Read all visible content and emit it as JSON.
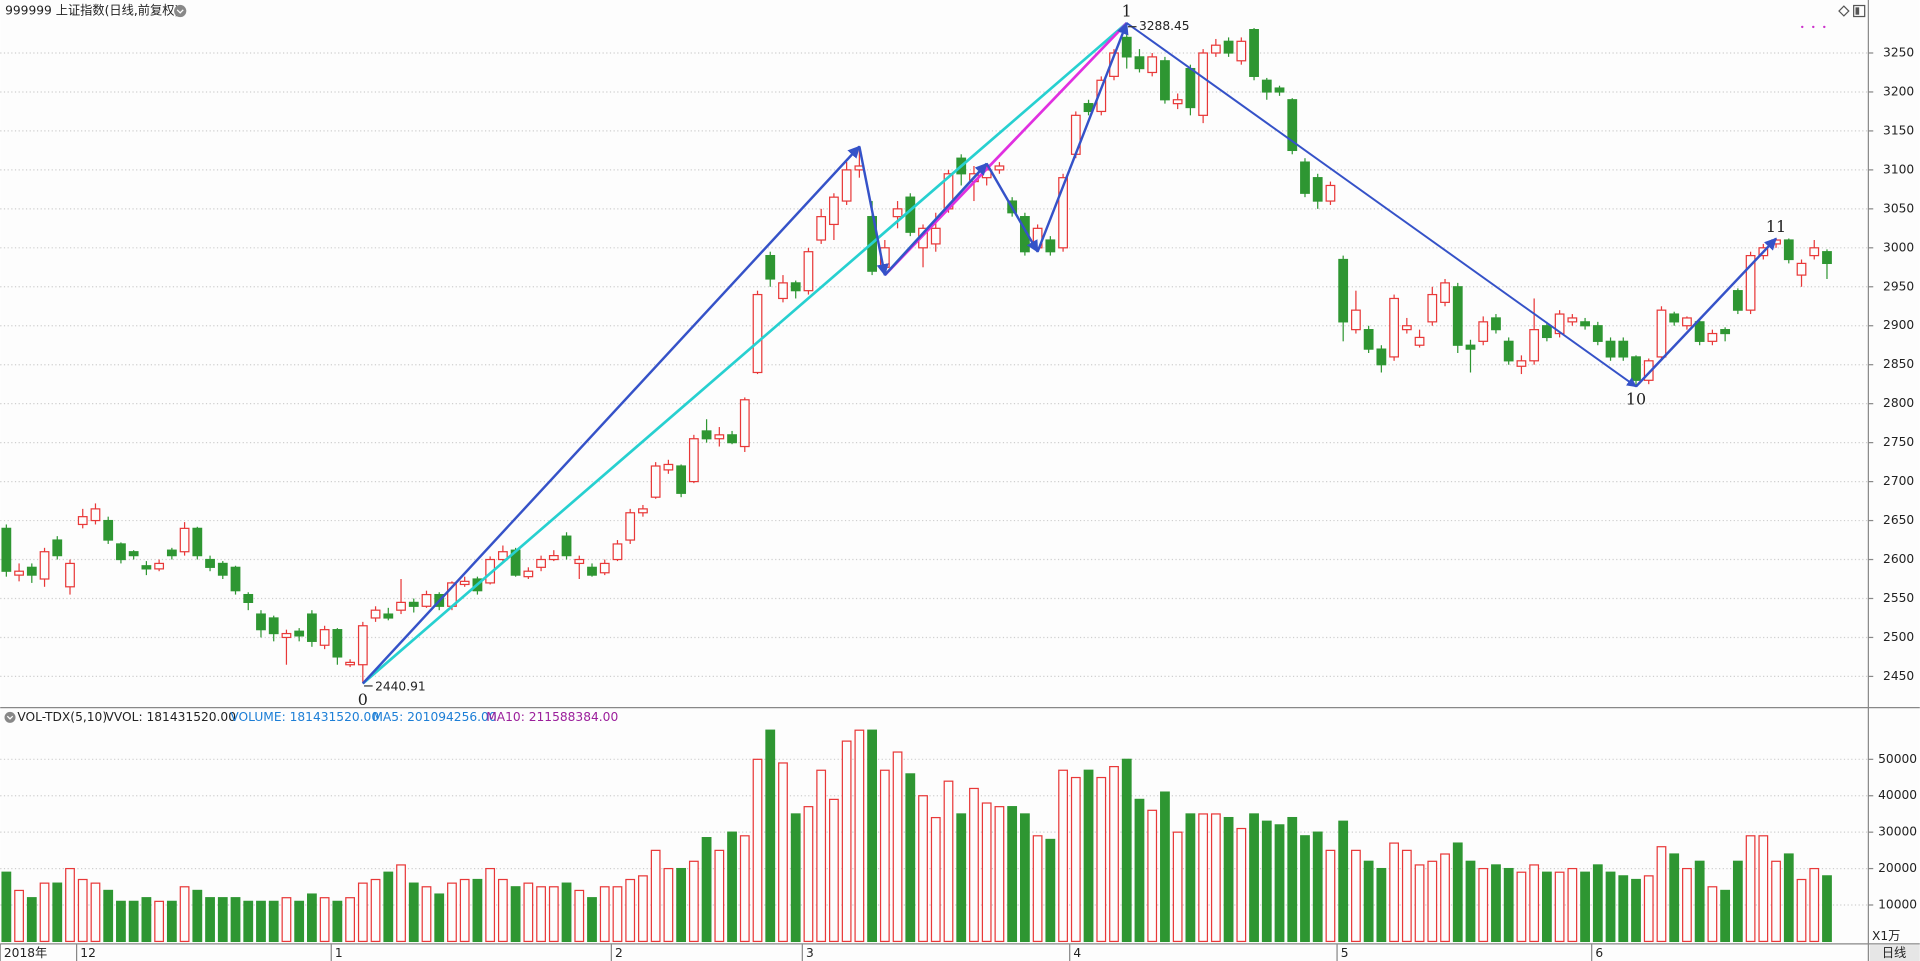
{
  "chart_data": {
    "type": "candlestick",
    "title": "999999 上证指数(日线,前复权)",
    "categories": [
      "2018年",
      null,
      null,
      null,
      null,
      null,
      "12",
      null,
      null,
      null,
      null,
      null,
      null,
      null,
      null,
      null,
      null,
      null,
      null,
      null,
      null,
      null,
      null,
      null,
      null,
      null,
      "1",
      null,
      null,
      null,
      null,
      null,
      null,
      null,
      null,
      null,
      null,
      null,
      null,
      null,
      null,
      null,
      null,
      null,
      null,
      null,
      null,
      null,
      "2",
      null,
      null,
      null,
      null,
      null,
      null,
      null,
      null,
      null,
      null,
      null,
      null,
      null,
      null,
      "3",
      null,
      null,
      null,
      null,
      null,
      null,
      null,
      null,
      null,
      null,
      null,
      null,
      null,
      null,
      null,
      null,
      null,
      null,
      null,
      null,
      "4",
      null,
      null,
      null,
      null,
      null,
      null,
      null,
      null,
      null,
      null,
      null,
      null,
      null,
      null,
      null,
      null,
      null,
      null,
      null,
      null,
      "5",
      null,
      null,
      null,
      null,
      null,
      null,
      null,
      null,
      null,
      null,
      null,
      null,
      null,
      null,
      null,
      null,
      null,
      null,
      null,
      "6",
      null,
      null,
      null,
      null,
      null,
      null,
      null,
      null,
      null,
      null,
      null,
      null,
      null,
      null,
      null,
      null,
      null,
      null
    ],
    "open": [
      2640,
      2580,
      2590,
      2575,
      2625,
      2565,
      2645,
      2650,
      2650,
      2620,
      2610,
      2592,
      2588,
      2612,
      2610,
      2640,
      2600,
      2595,
      2590,
      2555,
      2530,
      2525,
      2500,
      2508,
      2530,
      2490,
      2510,
      2465,
      2465,
      2525,
      2530,
      2535,
      2545,
      2540,
      2555,
      2540,
      2568,
      2575,
      2570,
      2600,
      2612,
      2578,
      2590,
      2600,
      2630,
      2595,
      2590,
      2583,
      2600,
      2625,
      2660,
      2680,
      2715,
      2720,
      2700,
      2765,
      2755,
      2760,
      2745,
      2840,
      2990,
      2935,
      2955,
      2945,
      3010,
      3030,
      3060,
      3100,
      3040,
      2975,
      3040,
      3065,
      3000,
      3005,
      3050,
      3115,
      3085,
      3090,
      3100,
      3060,
      3040,
      3000,
      3010,
      3000,
      3120,
      3185,
      3175,
      3220,
      3270,
      3245,
      3225,
      3240,
      3185,
      3230,
      3170,
      3250,
      3265,
      3240,
      3280,
      3215,
      3205,
      3190,
      3110,
      3090,
      3060,
      2985,
      2895,
      2895,
      2870,
      2860,
      2895,
      2875,
      2905,
      2930,
      2950,
      2875,
      2880,
      2910,
      2880,
      2848,
      2855,
      2900,
      2890,
      2905,
      2905,
      2900,
      2880,
      2880,
      2860,
      2830,
      2860,
      2915,
      2900,
      2905,
      2880,
      2895,
      2945,
      2920,
      2990,
      3005,
      3010,
      2965,
      2990,
      2995
    ],
    "high": [
      2645,
      2595,
      2595,
      2615,
      2630,
      2600,
      2665,
      2672,
      2655,
      2622,
      2612,
      2598,
      2600,
      2615,
      2648,
      2642,
      2605,
      2598,
      2592,
      2558,
      2535,
      2528,
      2510,
      2512,
      2535,
      2515,
      2512,
      2472,
      2520,
      2540,
      2538,
      2575,
      2550,
      2560,
      2558,
      2572,
      2578,
      2578,
      2604,
      2618,
      2615,
      2590,
      2605,
      2612,
      2635,
      2605,
      2595,
      2600,
      2625,
      2665,
      2670,
      2725,
      2728,
      2722,
      2760,
      2780,
      2770,
      2765,
      2808,
      2945,
      2995,
      2965,
      2958,
      3000,
      3050,
      3070,
      3110,
      3130,
      3060,
      3010,
      3060,
      3070,
      3030,
      3045,
      3100,
      3120,
      3105,
      3108,
      3110,
      3065,
      3045,
      3030,
      3015,
      3095,
      3175,
      3190,
      3220,
      3255,
      3288.45,
      3255,
      3250,
      3245,
      3198,
      3235,
      3255,
      3268,
      3270,
      3270,
      3282,
      3218,
      3208,
      3192,
      3115,
      3095,
      3085,
      2990,
      2945,
      2900,
      2875,
      2940,
      2910,
      2895,
      2950,
      2960,
      2955,
      2882,
      2912,
      2915,
      2885,
      2862,
      2935,
      2905,
      2920,
      2915,
      2910,
      2905,
      2885,
      2885,
      2862,
      2858,
      2925,
      2918,
      2912,
      2908,
      2895,
      2898,
      2948,
      2995,
      3005,
      3012,
      3012,
      2985,
      3010,
      2998
    ],
    "low": [
      2578,
      2572,
      2570,
      2565,
      2600,
      2555,
      2640,
      2645,
      2620,
      2595,
      2600,
      2580,
      2585,
      2600,
      2605,
      2600,
      2585,
      2575,
      2555,
      2535,
      2500,
      2495,
      2465,
      2495,
      2488,
      2485,
      2465,
      2462,
      2440.91,
      2520,
      2522,
      2530,
      2532,
      2538,
      2535,
      2535,
      2565,
      2555,
      2568,
      2598,
      2578,
      2575,
      2585,
      2598,
      2600,
      2575,
      2578,
      2580,
      2598,
      2620,
      2655,
      2678,
      2710,
      2680,
      2698,
      2750,
      2745,
      2748,
      2738,
      2838,
      2950,
      2930,
      2935,
      2940,
      3005,
      3010,
      3055,
      3090,
      2965,
      2965,
      3025,
      3015,
      2975,
      2995,
      3045,
      3080,
      3060,
      3080,
      3095,
      3040,
      2990,
      2995,
      2990,
      2995,
      3115,
      3170,
      3170,
      3215,
      3230,
      3225,
      3220,
      3185,
      3178,
      3170,
      3160,
      3245,
      3245,
      3235,
      3215,
      3190,
      3195,
      3120,
      3065,
      3050,
      3055,
      2880,
      2890,
      2865,
      2840,
      2855,
      2890,
      2872,
      2900,
      2925,
      2865,
      2840,
      2875,
      2890,
      2850,
      2838,
      2850,
      2880,
      2885,
      2900,
      2895,
      2875,
      2855,
      2855,
      2822,
      2825,
      2855,
      2900,
      2895,
      2875,
      2875,
      2880,
      2915,
      2915,
      2985,
      3000,
      2980,
      2950,
      2985,
      2960
    ],
    "close": [
      2585,
      2585,
      2580,
      2610,
      2605,
      2595,
      2655,
      2665,
      2625,
      2600,
      2605,
      2588,
      2595,
      2605,
      2640,
      2605,
      2590,
      2580,
      2560,
      2545,
      2510,
      2505,
      2505,
      2502,
      2495,
      2510,
      2475,
      2468,
      2515,
      2535,
      2525,
      2545,
      2540,
      2555,
      2540,
      2570,
      2572,
      2560,
      2600,
      2610,
      2580,
      2585,
      2600,
      2605,
      2605,
      2600,
      2580,
      2595,
      2620,
      2660,
      2665,
      2720,
      2722,
      2685,
      2755,
      2755,
      2760,
      2750,
      2805,
      2940,
      2960,
      2955,
      2945,
      2995,
      3040,
      3065,
      3100,
      3105,
      2970,
      3000,
      3050,
      3020,
      3025,
      3025,
      3095,
      3095,
      3095,
      3100,
      3105,
      3045,
      2995,
      3025,
      2995,
      3090,
      3170,
      3175,
      3215,
      3250,
      3245,
      3230,
      3245,
      3190,
      3190,
      3180,
      3250,
      3260,
      3250,
      3265,
      3220,
      3200,
      3200,
      3125,
      3070,
      3060,
      3080,
      2905,
      2920,
      2870,
      2850,
      2935,
      2900,
      2885,
      2940,
      2955,
      2875,
      2870,
      2905,
      2895,
      2855,
      2855,
      2895,
      2885,
      2915,
      2910,
      2900,
      2880,
      2860,
      2860,
      2830,
      2855,
      2920,
      2905,
      2910,
      2880,
      2890,
      2890,
      2920,
      2990,
      3000,
      3010,
      2985,
      2980,
      3000,
      2980
    ],
    "ylim": [
      2410,
      3318
    ],
    "yticks": [
      2450,
      2500,
      2550,
      2600,
      2650,
      2700,
      2750,
      2800,
      2850,
      2900,
      2950,
      3000,
      3050,
      3100,
      3150,
      3200,
      3250
    ],
    "grid": true,
    "up_color": "#e83838",
    "down_color": "#2e9632",
    "wave_labels": [
      "0",
      "1",
      "10",
      "11"
    ],
    "wave_color": "#3552c8",
    "indicator": {
      "name": "VOL-TDX(5,10)",
      "items": [
        {
          "label": "VVOL: 181431520.00",
          "color": "#222222"
        },
        {
          "label": "VOLUME: 181431520.00",
          "color": "#1c7ed6"
        },
        {
          "label": "MA5: 201094256.00",
          "color": "#1c7ed6"
        },
        {
          "label": "MA10: 211588384.00",
          "color": "#9b1f9b"
        }
      ]
    },
    "volume": {
      "values": [
        19000,
        14000,
        12000,
        16000,
        16000,
        20000,
        17000,
        16000,
        14000,
        11000,
        11000,
        12000,
        11000,
        11000,
        15000,
        14000,
        12000,
        12000,
        12000,
        11000,
        11000,
        11000,
        12000,
        11000,
        13000,
        12000,
        11000,
        12000,
        16000,
        17000,
        19000,
        21000,
        16000,
        15000,
        13000,
        16000,
        17000,
        17000,
        20000,
        17000,
        15000,
        16000,
        15000,
        15000,
        16000,
        14000,
        12000,
        15000,
        15000,
        17000,
        18000,
        25000,
        20000,
        20000,
        22000,
        28500,
        25000,
        30000,
        29000,
        50000,
        58000,
        49000,
        35000,
        37000,
        47000,
        39000,
        55000,
        58000,
        58000,
        47000,
        52000,
        46000,
        40000,
        34000,
        44000,
        35000,
        42000,
        38000,
        37000,
        37000,
        35000,
        29000,
        28000,
        47000,
        45000,
        47000,
        45000,
        48000,
        50000,
        39000,
        36000,
        41000,
        30000,
        35000,
        35000,
        35000,
        34000,
        31000,
        35000,
        33000,
        32000,
        34000,
        29000,
        30000,
        25000,
        33000,
        25000,
        22000,
        20000,
        27000,
        25000,
        21000,
        22000,
        24000,
        27000,
        22000,
        20000,
        21000,
        20000,
        19000,
        21000,
        19000,
        19000,
        20000,
        19000,
        21000,
        19000,
        18000,
        17000,
        18000,
        26000,
        24000,
        20000,
        22000,
        15000,
        14000,
        22000,
        29000,
        29000,
        22000,
        24000,
        17000,
        20000,
        18000
      ],
      "ylim": [
        0,
        59500
      ],
      "yticks": [
        10000,
        20000,
        30000,
        40000,
        50000
      ],
      "unit_label": "X1万"
    },
    "period_label": "日线"
  }
}
